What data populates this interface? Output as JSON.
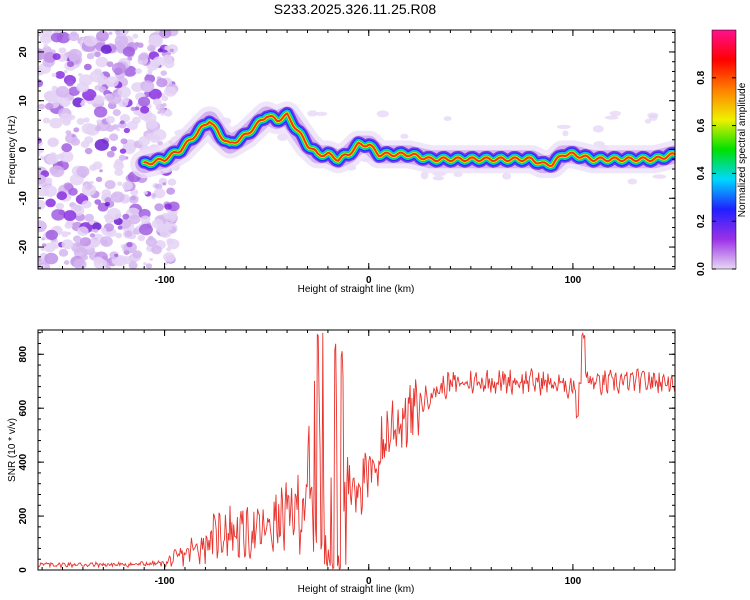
{
  "figure_title": "S233.2025.326.11.25.R08",
  "chart_data": [
    {
      "type": "heatmap",
      "title": "",
      "xlabel": "Height of straight line (km)",
      "ylabel": "Frequency (Hz)",
      "xlim": [
        -162,
        150
      ],
      "ylim": [
        -24.5,
        24.5
      ],
      "xticks": [
        -100,
        0,
        100
      ],
      "xtick_labels": [
        "-100",
        "0",
        "100"
      ],
      "yticks": [
        -20,
        -10,
        0,
        10,
        20
      ],
      "ytick_labels": [
        "-20",
        "-10",
        "0",
        "10",
        "20"
      ],
      "colorbar": {
        "label": "Normalized spectral amplitude",
        "range": [
          0,
          1
        ],
        "ticks": [
          0.0,
          0.2,
          0.4,
          0.6,
          0.8
        ],
        "tick_labels": [
          "0.0",
          "0.2",
          "0.4",
          "0.6",
          "0.8"
        ],
        "colors": [
          "#e8d8f4",
          "#9b30e8",
          "#2020ff",
          "#00d8ff",
          "#00e000",
          "#f0f000",
          "#ff8000",
          "#ff0000",
          "#ff1090"
        ]
      },
      "ridge": {
        "x": [
          -110,
          -100,
          -92,
          -85,
          -78,
          -73,
          -68,
          -60,
          -55,
          -50,
          -45,
          -40,
          -35,
          -30,
          -25,
          -20,
          -15,
          -10,
          -5,
          0,
          5,
          10,
          20,
          30,
          40,
          50,
          60,
          70,
          80,
          85,
          90,
          95,
          100,
          110,
          120,
          130,
          140,
          150
        ],
        "freq": [
          -3,
          -2,
          0,
          3,
          6,
          3,
          1,
          3,
          5,
          7,
          6,
          7,
          4,
          1,
          -1,
          -1,
          -2,
          -1,
          1,
          1,
          -1,
          -1,
          -1,
          -2,
          -2,
          -2,
          -2,
          -2,
          -2,
          -3,
          -3,
          -1,
          -1,
          -2,
          -2,
          -2,
          -2,
          -1
        ]
      },
      "noise_region_x": [
        -162,
        -100
      ]
    },
    {
      "type": "line",
      "title": "",
      "xlabel": "Height of straight line (km)",
      "ylabel": "SNR (10 * v/v)",
      "xlim": [
        -162,
        150
      ],
      "ylim": [
        0,
        890
      ],
      "xticks": [
        -100,
        0,
        100
      ],
      "xtick_labels": [
        "-100",
        "0",
        "100"
      ],
      "yticks": [
        0,
        200,
        400,
        600,
        800
      ],
      "ytick_labels": [
        "0",
        "200",
        "400",
        "600",
        "800"
      ],
      "color": "#e8322c",
      "series": [
        {
          "name": "SNR",
          "x": [
            -162,
            -140,
            -120,
            -100,
            -90,
            -80,
            -70,
            -60,
            -50,
            -40,
            -30,
            -25,
            -20,
            -15,
            -10,
            -5,
            0,
            5,
            10,
            20,
            30,
            40,
            60,
            80,
            100,
            105,
            110,
            130,
            150
          ],
          "y": [
            20,
            20,
            20,
            25,
            60,
            100,
            150,
            130,
            150,
            200,
            250,
            280,
            350,
            300,
            310,
            330,
            330,
            420,
            520,
            580,
            650,
            690,
            700,
            700,
            680,
            730,
            690,
            700,
            700
          ]
        }
      ],
      "annotations": [
        {
          "x": -24,
          "y": 880,
          "text": ""
        },
        {
          "x": 105,
          "y": 860,
          "text": ""
        },
        {
          "x": 102,
          "y": 560,
          "text": ""
        }
      ]
    }
  ]
}
